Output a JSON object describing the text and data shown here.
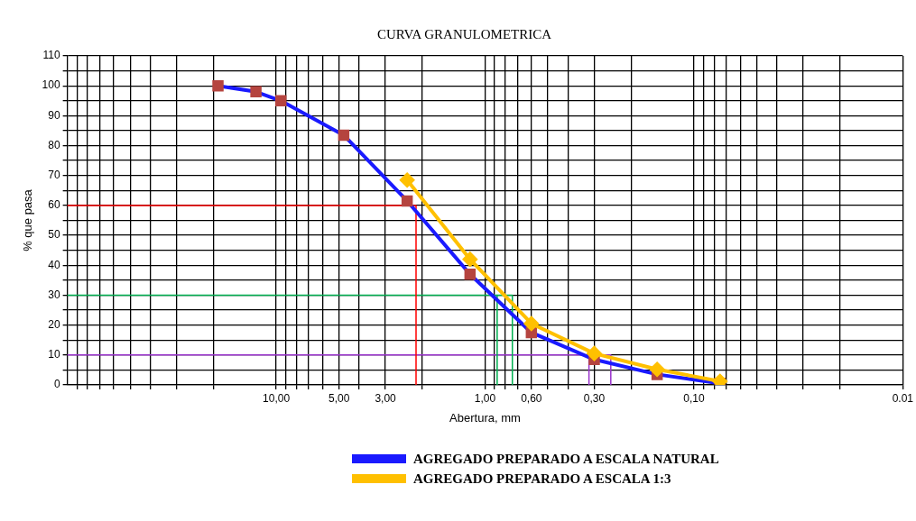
{
  "chart_data": {
    "type": "line",
    "title": "CURVA GRANULOMETRICA",
    "xlabel": "Abertura, mm",
    "ylabel": "% que pasa",
    "log": "x",
    "xlim": [
      100,
      0.01
    ],
    "ylim": [
      0,
      110
    ],
    "grid": true,
    "legend": "bottom",
    "line_style": "solid",
    "xticks": [
      {
        "value": 90,
        "label": null
      },
      {
        "value": 80,
        "label": null
      },
      {
        "value": 70,
        "label": null
      },
      {
        "value": 60,
        "label": null
      },
      {
        "value": 50,
        "label": null
      },
      {
        "value": 40,
        "label": null
      },
      {
        "value": 30,
        "label": null
      },
      {
        "value": 20,
        "label": null
      },
      {
        "value": 10,
        "label": "10,00"
      },
      {
        "value": 9,
        "label": null
      },
      {
        "value": 8,
        "label": null
      },
      {
        "value": 7,
        "label": null
      },
      {
        "value": 6,
        "label": null
      },
      {
        "value": 5,
        "label": "5,00"
      },
      {
        "value": 4,
        "label": null
      },
      {
        "value": 3,
        "label": "3,00"
      },
      {
        "value": 2,
        "label": null
      },
      {
        "value": 1,
        "label": "1,00"
      },
      {
        "value": 0.9,
        "label": null
      },
      {
        "value": 0.8,
        "label": null
      },
      {
        "value": 0.7,
        "label": null
      },
      {
        "value": 0.6,
        "label": "0,60"
      },
      {
        "value": 0.5,
        "label": null
      },
      {
        "value": 0.4,
        "label": null
      },
      {
        "value": 0.3,
        "label": "0,30"
      },
      {
        "value": 0.2,
        "label": null
      },
      {
        "value": 0.1,
        "label": "0,10"
      },
      {
        "value": 0.09,
        "label": null
      },
      {
        "value": 0.08,
        "label": null
      },
      {
        "value": 0.07,
        "label": null
      },
      {
        "value": 0.06,
        "label": null
      },
      {
        "value": 0.05,
        "label": null
      },
      {
        "value": 0.04,
        "label": null
      },
      {
        "value": 0.03,
        "label": null
      },
      {
        "value": 0.02,
        "label": null
      },
      {
        "value": 0.01,
        "label": "0.01"
      }
    ],
    "yticks": [
      0,
      {
        "value": 5,
        "label": null
      },
      10,
      {
        "value": 15,
        "label": null
      },
      20,
      {
        "value": 25,
        "label": null
      },
      30,
      {
        "value": 35,
        "label": null
      },
      40,
      {
        "value": 45,
        "label": null
      },
      50,
      {
        "value": 55,
        "label": null
      },
      60,
      {
        "value": 65,
        "label": null
      },
      70,
      {
        "value": 75,
        "label": null
      },
      80,
      {
        "value": 85,
        "label": null
      },
      90,
      {
        "value": 95,
        "label": null
      },
      100,
      {
        "value": 105,
        "label": null
      },
      110
    ],
    "series": [
      {
        "name": "AGREGADO PREPARADO A ESCALA NATURAL",
        "color": "#1a1aff",
        "marker": "square",
        "x": [
          19,
          12.5,
          9.5,
          4.75,
          2.36,
          1.18,
          0.6,
          0.3,
          0.15,
          0.075
        ],
        "values": [
          100,
          98,
          95,
          83.5,
          61.5,
          37,
          17.5,
          8.5,
          3.5,
          0.5
        ],
        "colors": [
          "#b5443f",
          "#b5443f",
          "#b5443f",
          "#b5443f",
          "#b5443f",
          "#b5443f",
          "#b5443f",
          "#b5443f",
          "#b5443f",
          "#b5443f"
        ]
      },
      {
        "name": "AGREGADO PREPARADO A ESCALA 1:3",
        "color": "#ffc000",
        "marker": "diamond",
        "x": [
          2.36,
          1.18,
          0.6,
          0.3,
          0.15,
          0.075
        ],
        "values": [
          68.5,
          42,
          20.5,
          10.5,
          5.2,
          1.2
        ]
      },
      {
        "color": "#ff0000",
        "marker": "none",
        "x": [
          100,
          2.14,
          2.14
        ],
        "values": [
          60,
          60,
          0
        ]
      },
      {
        "color": "#00b050",
        "marker": "none",
        "x": [
          100,
          0.74,
          0.74
        ],
        "values": [
          30,
          30,
          0
        ]
      },
      {
        "color": "#00b050",
        "marker": "none",
        "x": [
          0.875,
          0.875
        ],
        "values": [
          30,
          0
        ]
      },
      {
        "color": "#9933cc",
        "marker": "none",
        "x": [
          100,
          0.25,
          0.25
        ],
        "values": [
          10,
          10,
          0
        ]
      },
      {
        "color": "#9933cc",
        "marker": "none",
        "x": [
          0.318,
          0.318
        ],
        "values": [
          10,
          0
        ]
      }
    ]
  }
}
